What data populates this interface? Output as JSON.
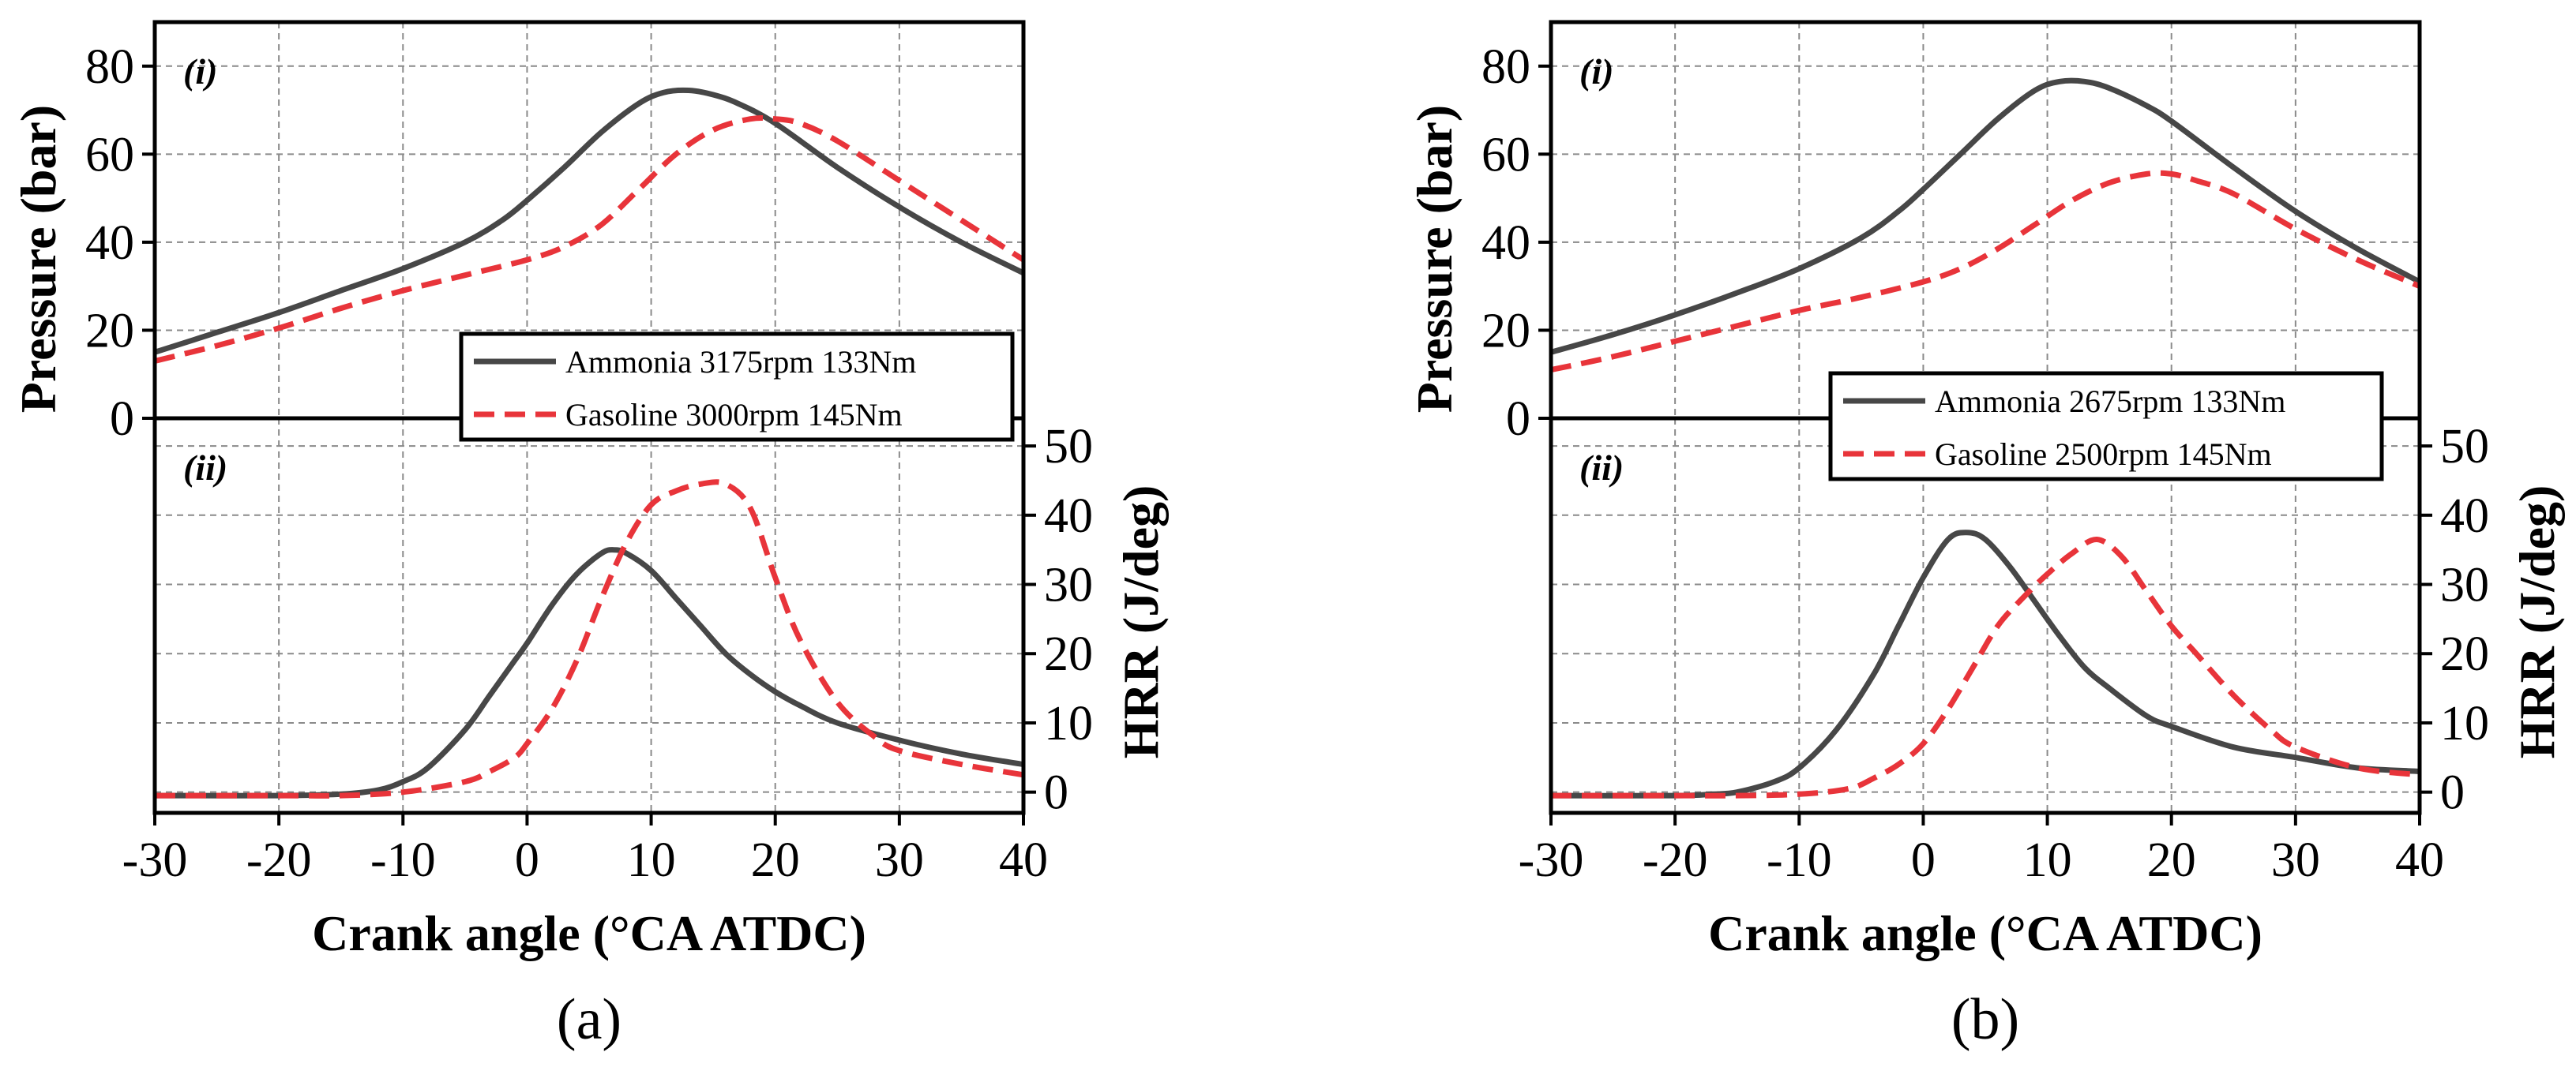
{
  "colors": {
    "ammonia": "#474747",
    "gasoline": "#e8343a",
    "grid": "#8a8a8a",
    "frame": "#000000"
  },
  "chart_data": [
    {
      "type": "line",
      "caption": "(a)",
      "xlabel": "Crank angle (°CA ATDC)",
      "xlim": [
        -30,
        40
      ],
      "xticks": [
        -30,
        -20,
        -10,
        0,
        10,
        20,
        30,
        40
      ],
      "top": {
        "tag": "(i)",
        "ylabel": "Pressure (bar)",
        "ylim": [
          0,
          90
        ],
        "yticks": [
          0,
          20,
          40,
          60,
          80
        ],
        "series": [
          {
            "name": "Ammonia 3175rpm 133Nm",
            "style": "solid",
            "color": "#474747",
            "x": [
              -30,
              -25,
              -20,
              -15,
              -10,
              -5,
              -2,
              0,
              3,
              6,
              9,
              11,
              13,
              15,
              17,
              20,
              25,
              30,
              35,
              40
            ],
            "y": [
              15,
              19.5,
              24,
              29,
              34,
              40,
              45,
              49.5,
              57,
              65,
              71.5,
              74,
              74.5,
              73.5,
              71.5,
              67,
              57,
              48,
              40,
              33
            ]
          },
          {
            "name": "Gasoline 3000rpm 145Nm",
            "style": "dashed",
            "color": "#e8343a",
            "x": [
              -30,
              -25,
              -20,
              -15,
              -10,
              -5,
              0,
              3,
              6,
              9,
              12,
              15,
              18,
              20,
              22,
              25,
              30,
              35,
              40
            ],
            "y": [
              13,
              16.5,
              20.5,
              25,
              29,
              32.5,
              36,
              39,
              44,
              52,
              60,
              65.5,
              68,
              68,
              67,
              63,
              54,
              45,
              36
            ]
          }
        ]
      },
      "bottom": {
        "tag": "(ii)",
        "ylabel": "HRR (J/deg)",
        "ylim": [
          -3,
          54
        ],
        "yticks": [
          0,
          10,
          20,
          30,
          40,
          50
        ],
        "series": [
          {
            "name": "Ammonia 3175rpm 133Nm",
            "style": "solid",
            "color": "#474747",
            "x": [
              -30,
              -20,
              -15,
              -12,
              -10,
              -8,
              -5,
              -3,
              -1,
              0,
              2,
              4,
              6,
              7,
              8,
              10,
              12,
              14,
              16,
              18,
              20,
              22,
              25,
              30,
              35,
              40
            ],
            "y": [
              -0.5,
              -0.5,
              -0.3,
              0.3,
              1.5,
              3.5,
              9,
              14,
              19,
              21.5,
              27,
              31.5,
              34.5,
              35,
              34.5,
              32,
              28,
              24,
              20,
              17,
              14.5,
              12.5,
              10,
              7.5,
              5.5,
              4
            ]
          },
          {
            "name": "Gasoline 3000rpm 145Nm",
            "style": "dashed",
            "color": "#e8343a",
            "x": [
              -30,
              -20,
              -15,
              -10,
              -5,
              -3,
              -1,
              0,
              2,
              4,
              6,
              8,
              10,
              12,
              14,
              16,
              18,
              20,
              22,
              25,
              28,
              30,
              35,
              40
            ],
            "y": [
              -0.5,
              -0.5,
              -0.5,
              0,
              1.5,
              3,
              5,
              7,
              12,
              19,
              28,
              36,
              41.5,
              43.5,
              44.5,
              44.5,
              41,
              31,
              22,
              13,
              8,
              6,
              4,
              2.5
            ]
          }
        ]
      },
      "legend": [
        {
          "label": "Ammonia 3175rpm 133Nm",
          "style": "solid"
        },
        {
          "label": "Gasoline 3000rpm 145Nm",
          "style": "dashed"
        }
      ]
    },
    {
      "type": "line",
      "caption": "(b)",
      "xlabel": "Crank angle (°CA ATDC)",
      "xlim": [
        -30,
        40
      ],
      "xticks": [
        -30,
        -20,
        -10,
        0,
        10,
        20,
        30,
        40
      ],
      "top": {
        "tag": "(i)",
        "ylabel": "Pressure (bar)",
        "ylim": [
          0,
          90
        ],
        "yticks": [
          0,
          20,
          40,
          60,
          80
        ],
        "series": [
          {
            "name": "Ammonia 2675rpm 133Nm",
            "style": "solid",
            "color": "#474747",
            "x": [
              -30,
              -25,
              -20,
              -15,
              -10,
              -5,
              -2,
              0,
              3,
              6,
              9,
              11,
              13,
              15,
              18,
              20,
              25,
              30,
              35,
              40
            ],
            "y": [
              15,
              19,
              23.5,
              28.5,
              34,
              41,
              47,
              52,
              60,
              68,
              74.5,
              76.5,
              76.5,
              75,
              71,
              67.5,
              57,
              47,
              38.5,
              31
            ]
          },
          {
            "name": "Gasoline 2500rpm 145Nm",
            "style": "dashed",
            "color": "#e8343a",
            "x": [
              -30,
              -25,
              -20,
              -15,
              -10,
              -5,
              0,
              3,
              6,
              9,
              12,
              15,
              18,
              20,
              22,
              25,
              30,
              35,
              40
            ],
            "y": [
              11,
              14,
              17.5,
              21,
              24.5,
              27.5,
              31,
              34,
              38.5,
              44,
              49.5,
              53.5,
              55.5,
              55.5,
              54,
              51,
              43,
              36,
              30
            ]
          }
        ]
      },
      "bottom": {
        "tag": "(ii)",
        "ylabel": "HRR (J/deg)",
        "ylim": [
          -3,
          54
        ],
        "yticks": [
          0,
          10,
          20,
          30,
          40,
          50
        ],
        "series": [
          {
            "name": "Ammonia 2675rpm 133Nm",
            "style": "solid",
            "color": "#474747",
            "x": [
              -30,
              -20,
              -17,
              -15,
              -12,
              -10,
              -7,
              -4,
              -2,
              0,
              2,
              3.5,
              5,
              7,
              9,
              11,
              13,
              15,
              18,
              20,
              25,
              30,
              35,
              40
            ],
            "y": [
              -0.5,
              -0.5,
              -0.3,
              0,
              1.5,
              3.5,
              9,
              17,
              24,
              31,
              36.5,
              37.5,
              36.5,
              32.5,
              27.5,
              22.5,
              18,
              15,
              11,
              9.5,
              6.5,
              5,
              3.5,
              3
            ]
          },
          {
            "name": "Gasoline 2500rpm 145Nm",
            "style": "dashed",
            "color": "#e8343a",
            "x": [
              -30,
              -20,
              -15,
              -10,
              -6,
              -4,
              -2,
              0,
              2,
              4,
              6,
              8,
              10,
              12,
              14,
              16,
              18,
              20,
              22,
              25,
              28,
              30,
              35,
              40
            ],
            "y": [
              -0.5,
              -0.5,
              -0.5,
              -0.3,
              0.5,
              2,
              4,
              7,
              12,
              18,
              24,
              28,
              31.5,
              34.5,
              36.5,
              34,
              29,
              24,
              20,
              14,
              9,
              6.5,
              3.5,
              2.5
            ]
          }
        ]
      },
      "legend": [
        {
          "label": "Ammonia 2675rpm 133Nm",
          "style": "solid"
        },
        {
          "label": "Gasoline 2500rpm 145Nm",
          "style": "dashed"
        }
      ]
    }
  ]
}
